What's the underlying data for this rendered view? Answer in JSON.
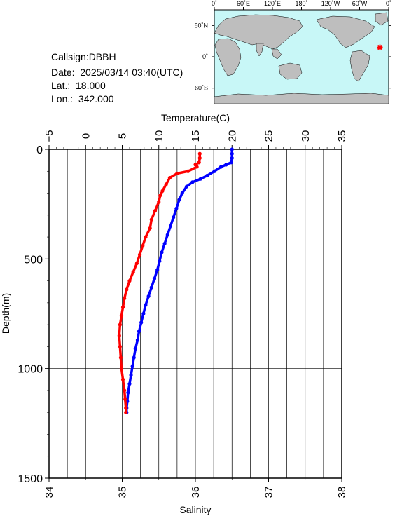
{
  "info": {
    "callsign": "Callsign:DBBH",
    "date": "Date:  2025/03/14 03:40(UTC)",
    "lat": "Lat.:  18.000",
    "lon": "Lon.:  342.000"
  },
  "map": {
    "lon_labels": [
      "0˚",
      "60˚E",
      "120˚E",
      "180˚",
      "120˚W",
      "60˚W",
      "0˚"
    ],
    "lat_labels": [
      "60˚N",
      "0˚",
      "60˚S"
    ],
    "ocean_color": "#c8f7f7",
    "land_color": "#bebebe",
    "marker": {
      "lat": 18.0,
      "lon": 342.0,
      "color": "#ff0000"
    }
  },
  "chart_data": {
    "type": "line",
    "title": "",
    "ylabel": "Depth(m)",
    "ylim": [
      0,
      1500
    ],
    "y_ticks": [
      "0",
      "500",
      "1000",
      "1500"
    ],
    "top_axis": {
      "label": "Temperature(C)",
      "range": [
        -5,
        35
      ],
      "ticks": [
        "−5",
        "0",
        "5",
        "10",
        "15",
        "20",
        "25",
        "30",
        "35"
      ]
    },
    "bottom_axis": {
      "label": "Salinity",
      "range": [
        34,
        38
      ],
      "ticks": [
        "34",
        "35",
        "36",
        "37",
        "38"
      ]
    },
    "grid": true,
    "series": [
      {
        "color": "#0000ff",
        "axis": "Temperature(C)",
        "points": [
          [
            20.0,
            0
          ],
          [
            20.0,
            20
          ],
          [
            20.0,
            40
          ],
          [
            19.9,
            60
          ],
          [
            19.2,
            70
          ],
          [
            18.5,
            80
          ],
          [
            17.6,
            100
          ],
          [
            16.6,
            120
          ],
          [
            15.7,
            135
          ],
          [
            14.6,
            150
          ],
          [
            13.8,
            170
          ],
          [
            13.2,
            200
          ],
          [
            12.8,
            230
          ],
          [
            12.4,
            270
          ],
          [
            12.0,
            310
          ],
          [
            11.6,
            350
          ],
          [
            11.2,
            390
          ],
          [
            10.8,
            430
          ],
          [
            10.4,
            470
          ],
          [
            10.1,
            510
          ],
          [
            9.8,
            550
          ],
          [
            9.4,
            590
          ],
          [
            9.0,
            630
          ],
          [
            8.6,
            670
          ],
          [
            8.2,
            710
          ],
          [
            7.9,
            750
          ],
          [
            7.6,
            790
          ],
          [
            7.3,
            830
          ],
          [
            7.1,
            870
          ],
          [
            6.8,
            910
          ],
          [
            6.6,
            950
          ],
          [
            6.4,
            990
          ],
          [
            6.2,
            1030
          ],
          [
            6.0,
            1070
          ],
          [
            5.8,
            1110
          ],
          [
            5.7,
            1150
          ],
          [
            5.6,
            1180
          ],
          [
            5.6,
            1200
          ]
        ]
      },
      {
        "color": "#ff0000",
        "axis": "Salinity",
        "points": [
          [
            36.06,
            20
          ],
          [
            36.06,
            40
          ],
          [
            36.05,
            60
          ],
          [
            36.0,
            70
          ],
          [
            36.02,
            80
          ],
          [
            35.9,
            100
          ],
          [
            35.75,
            110
          ],
          [
            35.65,
            130
          ],
          [
            35.6,
            160
          ],
          [
            35.55,
            190
          ],
          [
            35.52,
            210
          ],
          [
            35.5,
            240
          ],
          [
            35.45,
            280
          ],
          [
            35.4,
            320
          ],
          [
            35.38,
            360
          ],
          [
            35.32,
            400
          ],
          [
            35.28,
            440
          ],
          [
            35.24,
            480
          ],
          [
            35.2,
            520
          ],
          [
            35.15,
            560
          ],
          [
            35.1,
            600
          ],
          [
            35.06,
            640
          ],
          [
            35.03,
            680
          ],
          [
            35.01,
            720
          ],
          [
            34.99,
            760
          ],
          [
            34.97,
            800
          ],
          [
            34.96,
            850
          ],
          [
            34.97,
            900
          ],
          [
            34.98,
            950
          ],
          [
            34.99,
            1000
          ],
          [
            35.01,
            1050
          ],
          [
            35.03,
            1100
          ],
          [
            35.04,
            1140
          ],
          [
            35.05,
            1180
          ],
          [
            35.05,
            1200
          ]
        ]
      }
    ]
  }
}
